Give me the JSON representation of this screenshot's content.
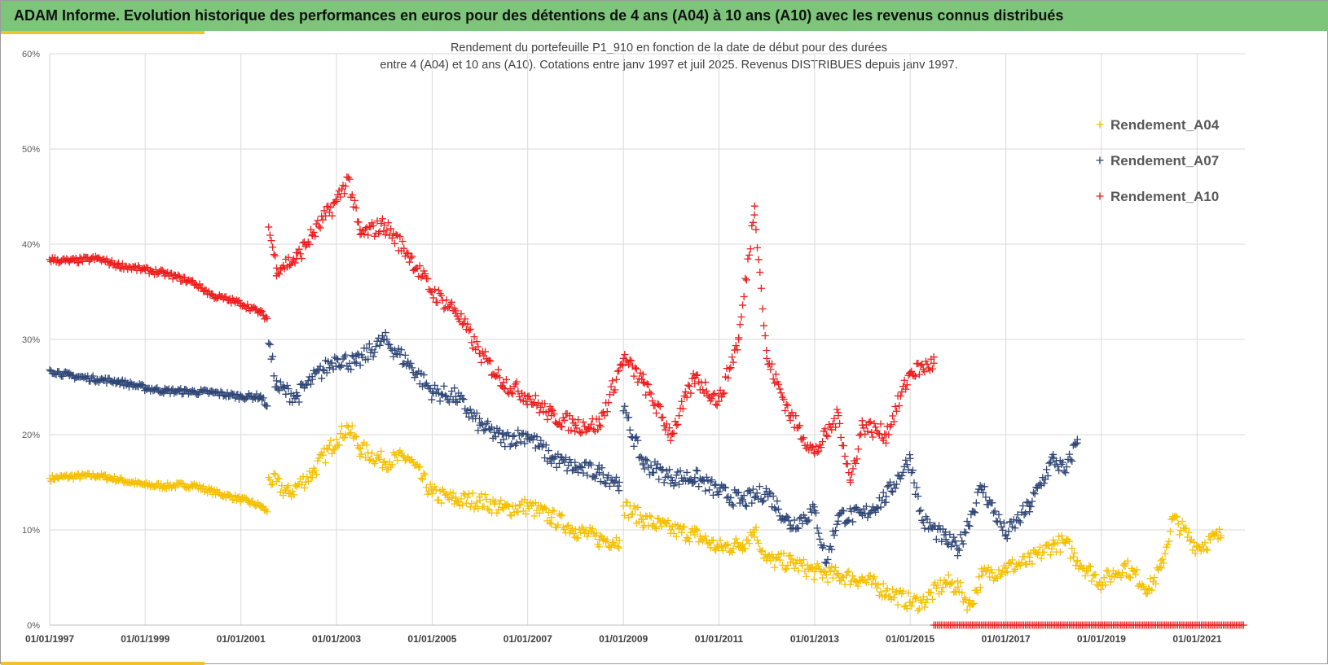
{
  "header": {
    "title": "ADAM Informe. Evolution historique des performances en euros pour des détentions de 4 ans (A04) à 10 ans (A10) avec les revenus connus distribués"
  },
  "colors": {
    "header_bg": "#7cc57a",
    "accent": "#f2c12e",
    "A04": "#f5c000",
    "A07": "#2f4676",
    "A10": "#ee1c1c",
    "grid": "#d9d9d9"
  },
  "chart_data": {
    "type": "scatter",
    "title_line1": "Rendement du portefeuille P1_910 en fonction de la date de début pour des durées",
    "title_line2": "entre 4 (A04) et 10 ans (A10). Cotations entre janv 1997 et juil 2025. Revenus DISTRIBUES depuis janv 1997.",
    "xlabel": "",
    "ylabel": "",
    "x_range": [
      "1997-01-01",
      "2022-01-01"
    ],
    "x_ticks": [
      "01/01/1997",
      "01/01/1999",
      "01/01/2001",
      "01/01/2003",
      "01/01/2005",
      "01/01/2007",
      "01/01/2009",
      "01/01/2011",
      "01/01/2013",
      "01/01/2015",
      "01/01/2017",
      "01/01/2019",
      "01/01/2021"
    ],
    "ylim": [
      0,
      0.6
    ],
    "y_ticks": [
      "0%",
      "10%",
      "20%",
      "30%",
      "40%",
      "50%",
      "60%"
    ],
    "grid": true,
    "legend_position": "top-right",
    "marker": "+",
    "series": [
      {
        "name": "Rendement_A04",
        "color": "#f5c000",
        "x": [
          "1997-01-01",
          "1997-06-01",
          "1998-01-01",
          "1998-06-01",
          "1999-01-01",
          "1999-06-01",
          "2000-01-01",
          "2000-06-01",
          "2001-01-01",
          "2001-06-01",
          "2001-07-20",
          "2001-08-01",
          "2002-01-01",
          "2002-07-01",
          "2003-01-01",
          "2003-04-01",
          "2003-07-01",
          "2004-01-01",
          "2004-07-01",
          "2005-01-01",
          "2005-07-01",
          "2006-01-01",
          "2006-07-01",
          "2007-01-01",
          "2007-07-01",
          "2008-01-01",
          "2008-07-01",
          "2008-12-01",
          "2009-01-01",
          "2009-06-01",
          "2010-01-01",
          "2010-07-01",
          "2011-01-01",
          "2011-07-01",
          "2011-10-01",
          "2012-01-01",
          "2012-07-01",
          "2013-01-01",
          "2013-07-01",
          "2014-01-01",
          "2014-07-01",
          "2015-01-01",
          "2015-04-01",
          "2015-10-01",
          "2016-01-01",
          "2016-04-01",
          "2016-07-01",
          "2017-01-01",
          "2017-07-01",
          "2018-01-01",
          "2018-04-01",
          "2018-07-01",
          "2019-01-01",
          "2019-07-01",
          "2020-01-01",
          "2020-04-01",
          "2020-07-01",
          "2021-01-01",
          "2021-07-01"
        ],
        "values": [
          0.154,
          0.156,
          0.157,
          0.153,
          0.147,
          0.146,
          0.147,
          0.14,
          0.132,
          0.125,
          0.119,
          0.155,
          0.138,
          0.16,
          0.195,
          0.208,
          0.185,
          0.172,
          0.176,
          0.138,
          0.131,
          0.131,
          0.122,
          0.125,
          0.113,
          0.1,
          0.09,
          0.089,
          0.125,
          0.111,
          0.1,
          0.095,
          0.081,
          0.085,
          0.1,
          0.068,
          0.066,
          0.056,
          0.052,
          0.048,
          0.036,
          0.024,
          0.024,
          0.045,
          0.04,
          0.02,
          0.052,
          0.06,
          0.067,
          0.085,
          0.086,
          0.068,
          0.045,
          0.062,
          0.038,
          0.06,
          0.112,
          0.082,
          0.094
        ],
        "notes": "values read from the plot, approximate; continues to mid-2021"
      },
      {
        "name": "Rendement_A07",
        "color": "#2f4676",
        "x": [
          "1997-01-01",
          "1997-06-01",
          "1998-01-01",
          "1998-06-01",
          "1999-01-01",
          "1999-06-01",
          "2000-01-01",
          "2000-06-01",
          "2001-01-01",
          "2001-06-01",
          "2001-07-20",
          "2001-08-01",
          "2001-10-01",
          "2002-03-01",
          "2002-07-01",
          "2003-01-01",
          "2003-06-01",
          "2004-01-01",
          "2004-07-01",
          "2005-01-01",
          "2005-07-01",
          "2006-01-01",
          "2006-07-01",
          "2007-01-01",
          "2007-07-01",
          "2008-01-01",
          "2008-07-01",
          "2008-12-01",
          "2009-01-01",
          "2009-06-01",
          "2010-01-01",
          "2010-07-01",
          "2011-01-01",
          "2011-07-01",
          "2012-01-01",
          "2012-07-01",
          "2013-01-01",
          "2013-04-01",
          "2013-07-01",
          "2014-01-01",
          "2014-07-01",
          "2015-01-01",
          "2015-04-01",
          "2015-10-01",
          "2016-01-01",
          "2016-07-01",
          "2017-01-01",
          "2017-07-01",
          "2018-01-01",
          "2018-04-01",
          "2018-07-01"
        ],
        "values": [
          0.268,
          0.262,
          0.258,
          0.256,
          0.249,
          0.246,
          0.245,
          0.244,
          0.24,
          0.24,
          0.23,
          0.296,
          0.25,
          0.24,
          0.258,
          0.28,
          0.275,
          0.3,
          0.275,
          0.245,
          0.24,
          0.21,
          0.195,
          0.2,
          0.175,
          0.165,
          0.16,
          0.15,
          0.225,
          0.17,
          0.155,
          0.155,
          0.14,
          0.13,
          0.14,
          0.105,
          0.12,
          0.065,
          0.115,
          0.115,
          0.135,
          0.175,
          0.11,
          0.09,
          0.08,
          0.145,
          0.095,
          0.125,
          0.175,
          0.16,
          0.195
        ]
      },
      {
        "name": "Rendement_A10",
        "color": "#ee1c1c",
        "x": [
          "1997-01-01",
          "1997-06-01",
          "1998-01-01",
          "1998-06-01",
          "1999-01-01",
          "1999-06-01",
          "2000-01-01",
          "2000-06-01",
          "2001-01-01",
          "2001-06-01",
          "2001-07-20",
          "2001-08-01",
          "2001-10-01",
          "2002-03-01",
          "2002-07-01",
          "2003-01-01",
          "2003-04-01",
          "2003-07-01",
          "2004-01-01",
          "2004-07-01",
          "2005-01-01",
          "2005-07-01",
          "2006-01-01",
          "2006-07-01",
          "2007-01-01",
          "2007-07-01",
          "2008-01-01",
          "2008-07-01",
          "2009-01-01",
          "2009-06-01",
          "2010-01-01",
          "2010-07-01",
          "2011-01-01",
          "2011-06-01",
          "2011-10-01",
          "2012-01-01",
          "2012-07-01",
          "2013-01-01",
          "2013-07-01",
          "2013-10-01",
          "2014-01-01",
          "2014-07-01",
          "2015-01-01",
          "2015-07-01"
        ],
        "values": [
          0.384,
          0.382,
          0.385,
          0.378,
          0.373,
          0.369,
          0.36,
          0.346,
          0.338,
          0.328,
          0.322,
          0.418,
          0.375,
          0.385,
          0.41,
          0.445,
          0.47,
          0.41,
          0.42,
          0.39,
          0.35,
          0.33,
          0.285,
          0.255,
          0.24,
          0.22,
          0.21,
          0.21,
          0.28,
          0.255,
          0.2,
          0.26,
          0.235,
          0.3,
          0.44,
          0.28,
          0.22,
          0.18,
          0.22,
          0.15,
          0.21,
          0.2,
          0.265,
          0.275
        ],
        "tail_zero": {
          "x_start": "2015-07-01",
          "x_end": "2021-12-31",
          "value": 0.0
        }
      }
    ]
  }
}
